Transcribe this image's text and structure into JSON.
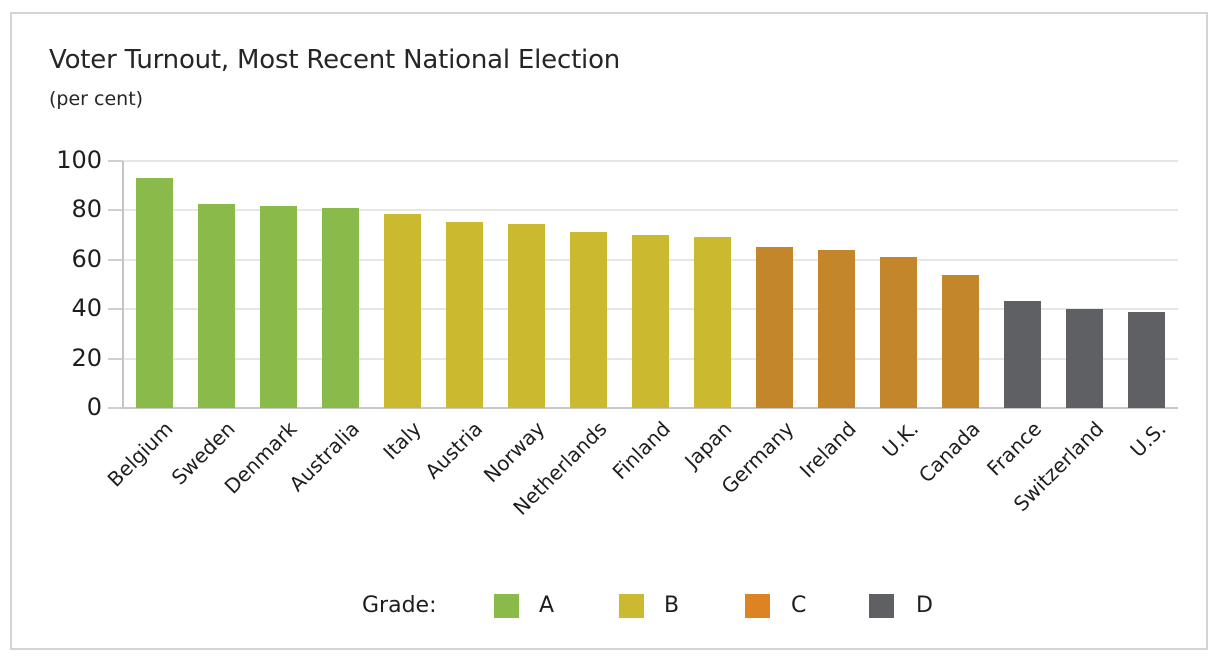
{
  "chart_data": {
    "type": "bar",
    "title": "Voter Turnout, Most Recent National Election",
    "subtitle": "(per cent)",
    "xlabel": "",
    "ylabel": "per cent",
    "ylim": [
      0,
      100
    ],
    "yticks": [
      0,
      20,
      40,
      60,
      80,
      100
    ],
    "grid": true,
    "legend_position": "bottom",
    "categories": [
      "Belgium",
      "Sweden",
      "Denmark",
      "Australia",
      "Italy",
      "Austria",
      "Norway",
      "Netherlands",
      "Finland",
      "Japan",
      "Germany",
      "Ireland",
      "U.K.",
      "Canada",
      "France",
      "Switzerland",
      "U.S."
    ],
    "values": [
      93.0,
      82.3,
      81.7,
      80.9,
      78.5,
      75.3,
      74.2,
      71.1,
      70.0,
      69.1,
      64.9,
      63.8,
      60.9,
      53.9,
      43.4,
      39.9,
      38.7
    ],
    "grades": [
      "A",
      "A",
      "A",
      "A",
      "B",
      "B",
      "B",
      "B",
      "B",
      "B",
      "C",
      "C",
      "C",
      "C",
      "D",
      "D",
      "D"
    ],
    "legend": {
      "title": "Grade:",
      "entries": [
        {
          "label": "A",
          "bar_color": "#8aba4a",
          "swatch_color": "#8aba4a"
        },
        {
          "label": "B",
          "bar_color": "#cbb930",
          "swatch_color": "#cbb930"
        },
        {
          "label": "C",
          "bar_color": "#c4862a",
          "swatch_color": "#de8324"
        },
        {
          "label": "D",
          "bar_color": "#5f6064",
          "swatch_color": "#5f6064"
        }
      ]
    }
  }
}
